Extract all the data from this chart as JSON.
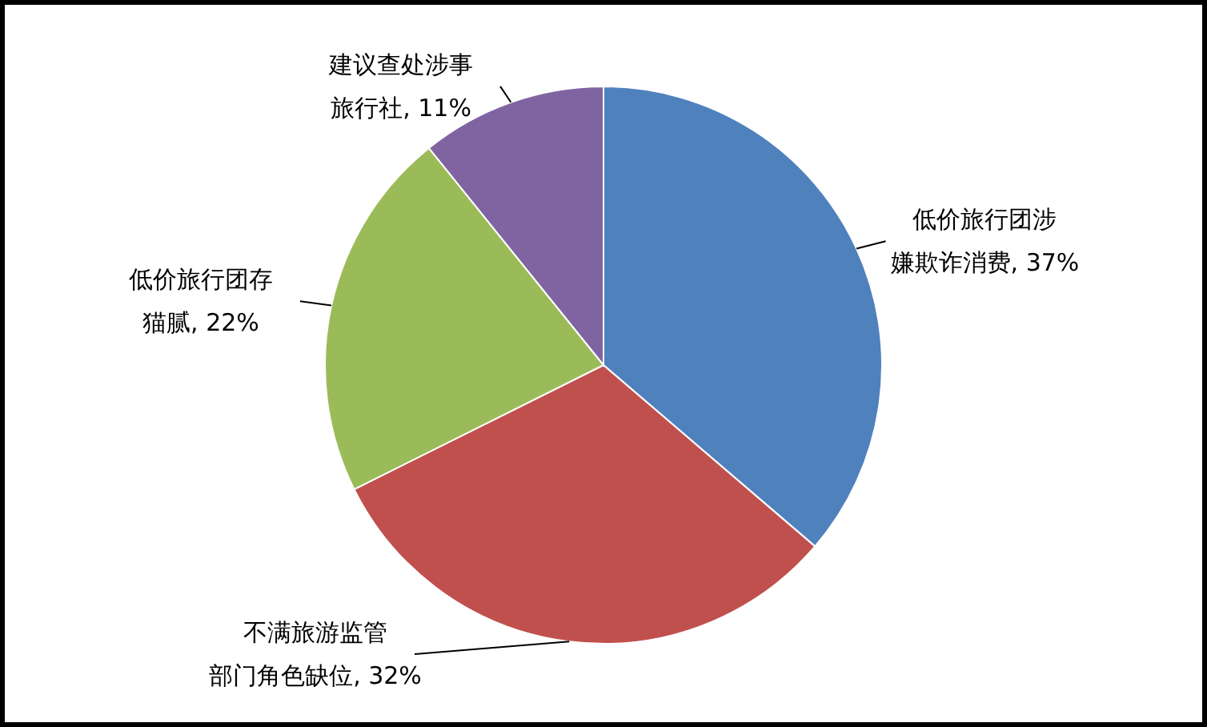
{
  "chart_data": {
    "type": "pie",
    "categories": [
      "低价旅行团涉嫌欺诈消费",
      "不满旅游监管部门角色缺位",
      "低价旅行团存猫腻",
      "建议查处涉事旅行社"
    ],
    "values": [
      37,
      32,
      22,
      11
    ],
    "colors": [
      "#4f81bd",
      "#c0504d",
      "#9bbb59",
      "#8064a2"
    ],
    "value_labels": [
      "37%",
      "32%",
      "22%",
      "11%"
    ]
  }
}
